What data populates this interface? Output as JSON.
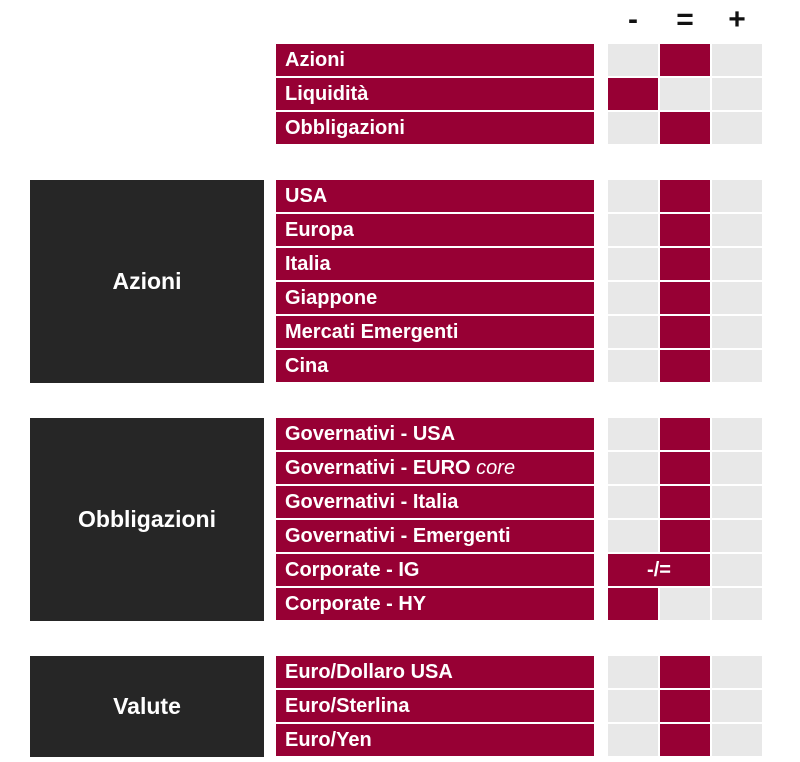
{
  "header": {
    "minus": "-",
    "equal": "=",
    "plus": "+"
  },
  "colors": {
    "accent": "#970034",
    "group_bg": "#262626",
    "cell_off": "#e8e8e8"
  },
  "top_rows": [
    {
      "label": "Azioni",
      "rating": "equal"
    },
    {
      "label": "Liquidità",
      "rating": "minus"
    },
    {
      "label": "Obbligazioni",
      "rating": "equal"
    }
  ],
  "groups": [
    {
      "title": "Azioni",
      "rows": [
        {
          "label": "USA",
          "rating": "equal"
        },
        {
          "label": "Europa",
          "rating": "equal"
        },
        {
          "label": "Italia",
          "rating": "equal"
        },
        {
          "label": "Giappone",
          "rating": "equal"
        },
        {
          "label": "Mercati Emergenti",
          "rating": "equal"
        },
        {
          "label": "Cina",
          "rating": "equal"
        }
      ]
    },
    {
      "title": "Obbligazioni",
      "rows": [
        {
          "label": "Governativi - USA",
          "rating": "equal"
        },
        {
          "label": "Governativi - EURO ",
          "label_italic": "core",
          "rating": "equal"
        },
        {
          "label": "Governativi - Italia",
          "rating": "equal"
        },
        {
          "label": "Governativi - Emergenti",
          "rating": "equal"
        },
        {
          "label": "Corporate - IG",
          "rating": "minus-equal",
          "rating_text": "-/="
        },
        {
          "label": "Corporate - HY",
          "rating": "minus"
        }
      ]
    },
    {
      "title": "Valute",
      "rows": [
        {
          "label": "Euro/Dollaro USA",
          "rating": "equal"
        },
        {
          "label": "Euro/Sterlina",
          "rating": "equal"
        },
        {
          "label": "Euro/Yen",
          "rating": "equal"
        }
      ]
    }
  ]
}
